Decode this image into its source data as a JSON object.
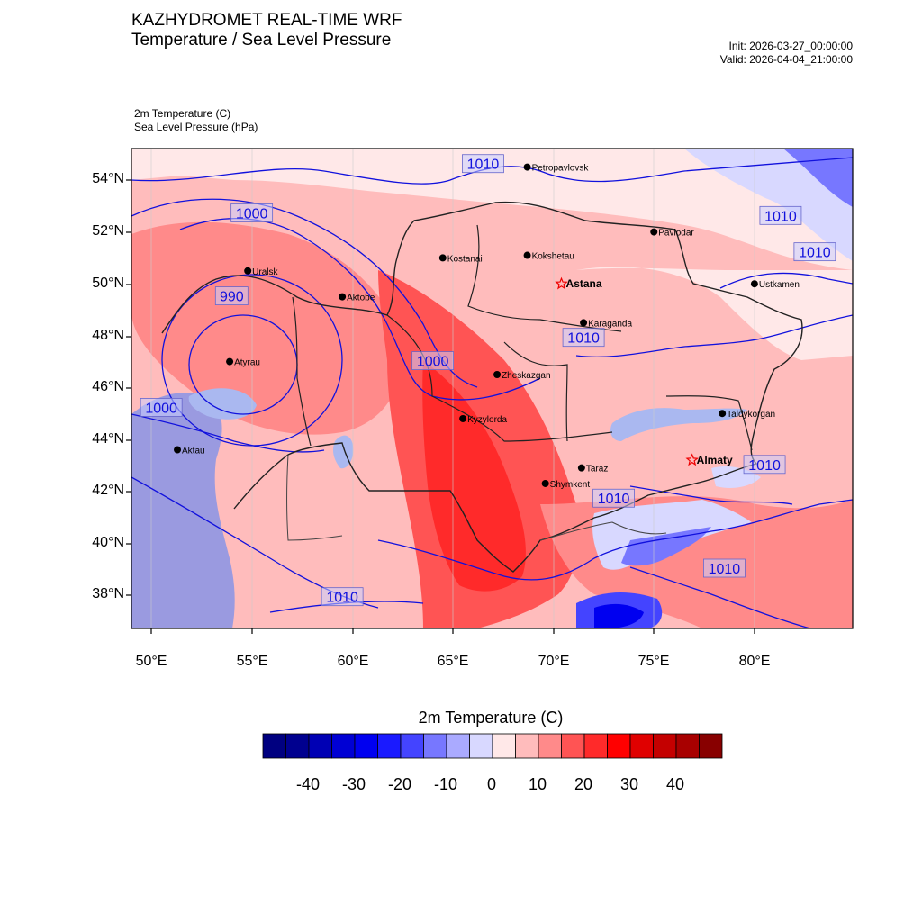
{
  "header": {
    "title_line1": "KAZHYDROMET REAL-TIME WRF",
    "title_line2": "Temperature / Sea Level Pressure",
    "init": "Init: 2026-03-27_00:00:00",
    "valid": "Valid: 2026-04-04_21:00:00"
  },
  "variables": {
    "line1": "2m Temperature   (C)",
    "line2": "Sea Level Pressure   (hPa)"
  },
  "map": {
    "lat_labels": [
      "54°N",
      "52°N",
      "50°N",
      "48°N",
      "46°N",
      "44°N",
      "42°N",
      "40°N",
      "38°N"
    ],
    "lon_labels": [
      "50°E",
      "55°E",
      "60°E",
      "65°E",
      "70°E",
      "75°E",
      "80°E"
    ],
    "cities": [
      {
        "name": "Petropavlovsk",
        "lon": 68.7,
        "lat": 54.5,
        "capital": false,
        "bold": false
      },
      {
        "name": "Kostanai",
        "lon": 64.5,
        "lat": 51.0,
        "capital": false,
        "bold": false
      },
      {
        "name": "Kokshetau",
        "lon": 68.7,
        "lat": 51.1,
        "capital": false,
        "bold": false
      },
      {
        "name": "Pavlodar",
        "lon": 75.0,
        "lat": 52.0,
        "capital": false,
        "bold": false
      },
      {
        "name": "Uralsk",
        "lon": 54.8,
        "lat": 50.5,
        "capital": false,
        "bold": false
      },
      {
        "name": "Astana",
        "lon": 70.4,
        "lat": 50.0,
        "capital": true,
        "bold": true
      },
      {
        "name": "Aktobe",
        "lon": 59.5,
        "lat": 49.5,
        "capital": false,
        "bold": false
      },
      {
        "name": "Ustkamen",
        "lon": 80.0,
        "lat": 50.0,
        "capital": false,
        "bold": false
      },
      {
        "name": "Karaganda",
        "lon": 71.5,
        "lat": 48.5,
        "capital": false,
        "bold": false
      },
      {
        "name": "Atyrau",
        "lon": 53.9,
        "lat": 47.0,
        "capital": false,
        "bold": false
      },
      {
        "name": "Zheskazgan",
        "lon": 67.2,
        "lat": 46.5,
        "capital": false,
        "bold": false
      },
      {
        "name": "Aktau",
        "lon": 51.3,
        "lat": 43.6,
        "capital": false,
        "bold": false
      },
      {
        "name": "Taldykorgan",
        "lon": 78.4,
        "lat": 45.0,
        "capital": false,
        "bold": false
      },
      {
        "name": "Kyzylorda",
        "lon": 65.5,
        "lat": 44.8,
        "capital": false,
        "bold": false
      },
      {
        "name": "Almaty",
        "lon": 76.9,
        "lat": 43.2,
        "capital": true,
        "bold": true
      },
      {
        "name": "Taraz",
        "lon": 71.4,
        "lat": 42.9,
        "capital": false,
        "bold": false
      },
      {
        "name": "Shymkent",
        "lon": 69.6,
        "lat": 42.3,
        "capital": false,
        "bold": false
      }
    ],
    "contour_labels": [
      {
        "text": "1010",
        "lon": 66.5,
        "lat": 54.6
      },
      {
        "text": "1000",
        "lon": 55.0,
        "lat": 52.7
      },
      {
        "text": "1010",
        "lon": 81.3,
        "lat": 52.6
      },
      {
        "text": "1010",
        "lon": 83.0,
        "lat": 51.2
      },
      {
        "text": "990",
        "lon": 54.0,
        "lat": 49.5
      },
      {
        "text": "1010",
        "lon": 71.5,
        "lat": 47.9
      },
      {
        "text": "1000",
        "lon": 64.0,
        "lat": 47.0
      },
      {
        "text": "1000",
        "lon": 50.5,
        "lat": 45.2
      },
      {
        "text": "1010",
        "lon": 80.5,
        "lat": 43.0
      },
      {
        "text": "1010",
        "lon": 73.0,
        "lat": 41.7
      },
      {
        "text": "1010",
        "lon": 78.5,
        "lat": 39.0
      },
      {
        "text": "1010",
        "lon": 59.5,
        "lat": 37.9
      }
    ]
  },
  "colorbar": {
    "title": "2m Temperature  (C)",
    "tick_labels": [
      "-40",
      "-30",
      "-20",
      "-10",
      "0",
      "10",
      "20",
      "30",
      "40"
    ],
    "colors": [
      "#000080",
      "#00008f",
      "#0000b4",
      "#0000d4",
      "#0000f0",
      "#1a1aff",
      "#4444ff",
      "#7777ff",
      "#aaaaff",
      "#d8d8ff",
      "#ffe8e8",
      "#ffbcbc",
      "#ff8a8a",
      "#ff5454",
      "#ff2a2a",
      "#ff0000",
      "#e00000",
      "#c40000",
      "#a80000",
      "#880000"
    ]
  }
}
